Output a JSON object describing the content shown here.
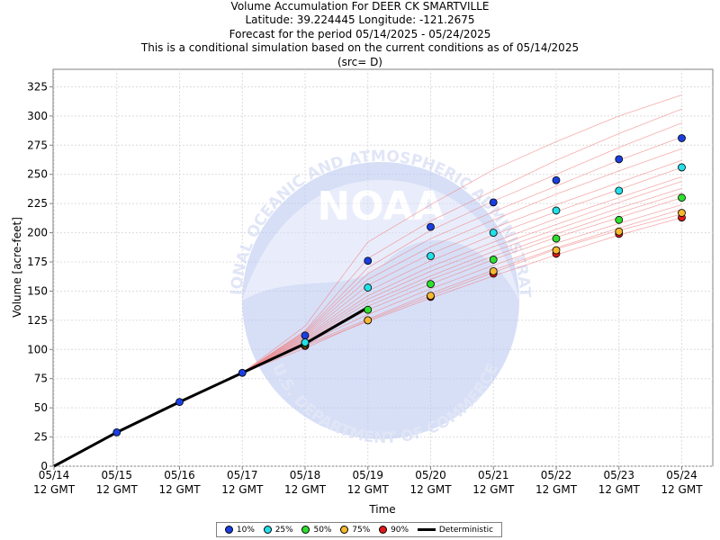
{
  "titles": {
    "line1": "Volume Accumulation For DEER CK SMARTVILLE",
    "line2": "Latitude: 39.224445 Longitude: -121.2675",
    "line3": "Forecast for the period 05/14/2025 - 05/24/2025",
    "line4": "This is a conditional simulation based on the current conditions as of 05/14/2025",
    "line5": "(src= D)"
  },
  "watermark": {
    "logo_text": "NOAA",
    "ring_text_top": "NATIONAL OCEANIC AND ATMOSPHERIC ADMINISTRATION",
    "ring_text_bottom": "U.S. DEPARTMENT OF COMMERCE"
  },
  "legend": [
    {
      "label": "10%",
      "color": "#1a3fe0",
      "kind": "dot"
    },
    {
      "label": "25%",
      "color": "#22e0e8",
      "kind": "dot"
    },
    {
      "label": "50%",
      "color": "#2ee02e",
      "kind": "dot"
    },
    {
      "label": "75%",
      "color": "#f5b830",
      "kind": "dot"
    },
    {
      "label": "90%",
      "color": "#e01a1a",
      "kind": "dot"
    },
    {
      "label": "Deterministic",
      "color": "#000000",
      "kind": "line"
    }
  ],
  "chart_data": {
    "type": "line",
    "xlabel": "Time",
    "ylabel": "Volume [acre-feet]",
    "ylim": [
      0,
      340
    ],
    "yticks": [
      0,
      25,
      50,
      75,
      100,
      125,
      150,
      175,
      200,
      225,
      250,
      275,
      300,
      325
    ],
    "xlim": [
      0,
      10.5
    ],
    "x_ticks": [
      {
        "x": 0,
        "date": "05/14",
        "time": "12 GMT"
      },
      {
        "x": 1,
        "date": "05/15",
        "time": "12 GMT"
      },
      {
        "x": 2,
        "date": "05/16",
        "time": "12 GMT"
      },
      {
        "x": 3,
        "date": "05/17",
        "time": "12 GMT"
      },
      {
        "x": 4,
        "date": "05/18",
        "time": "12 GMT"
      },
      {
        "x": 5,
        "date": "05/19",
        "time": "12 GMT"
      },
      {
        "x": 6,
        "date": "05/20",
        "time": "12 GMT"
      },
      {
        "x": 7,
        "date": "05/21",
        "time": "12 GMT"
      },
      {
        "x": 8,
        "date": "05/22",
        "time": "12 GMT"
      },
      {
        "x": 9,
        "date": "05/23",
        "time": "12 GMT"
      },
      {
        "x": 10,
        "date": "05/24",
        "time": "12 GMT"
      }
    ],
    "grid": true,
    "legend_position": "bottom",
    "deterministic": {
      "name": "Deterministic",
      "color": "#000000",
      "x": [
        0,
        1,
        2,
        3,
        4,
        5
      ],
      "y": [
        0,
        29,
        55,
        80,
        105,
        136
      ]
    },
    "initial_points": {
      "color": "#1a3fe0",
      "x": [
        1,
        2,
        3
      ],
      "y": [
        29,
        55,
        80
      ]
    },
    "percentile_series": [
      {
        "name": "10%",
        "color": "#1a3fe0",
        "x": [
          4,
          5,
          6,
          7,
          8,
          9,
          10
        ],
        "y": [
          112,
          176,
          205,
          226,
          245,
          263,
          281
        ]
      },
      {
        "name": "25%",
        "color": "#22e0e8",
        "x": [
          4,
          5,
          6,
          7,
          8,
          9,
          10
        ],
        "y": [
          106,
          153,
          180,
          200,
          219,
          236,
          256
        ]
      },
      {
        "name": "50%",
        "color": "#2ee02e",
        "x": [
          4,
          5,
          6,
          7,
          8,
          9,
          10
        ],
        "y": [
          105,
          134,
          156,
          177,
          195,
          211,
          230
        ]
      },
      {
        "name": "75%",
        "color": "#f5b830",
        "x": [
          4,
          5,
          6,
          7,
          8,
          9,
          10
        ],
        "y": [
          104,
          125,
          146,
          167,
          185,
          201,
          217
        ]
      },
      {
        "name": "90%",
        "color": "#e01a1a",
        "x": [
          4,
          5,
          6,
          7,
          8,
          9,
          10
        ],
        "y": [
          103,
          125,
          145,
          165,
          182,
          199,
          213
        ]
      }
    ],
    "ensemble_traces": {
      "color": "#f08080",
      "x": [
        3,
        4,
        5,
        6,
        7,
        8,
        9,
        10
      ],
      "traces": [
        [
          80,
          103,
          124,
          144,
          163,
          181,
          198,
          213
        ],
        [
          80,
          104,
          126,
          148,
          168,
          187,
          204,
          220
        ],
        [
          80,
          105,
          130,
          152,
          172,
          191,
          208,
          224
        ],
        [
          80,
          106,
          134,
          156,
          177,
          196,
          213,
          230
        ],
        [
          80,
          108,
          140,
          163,
          184,
          203,
          221,
          238
        ],
        [
          80,
          110,
          146,
          171,
          192,
          212,
          230,
          248
        ],
        [
          80,
          112,
          155,
          182,
          204,
          224,
          243,
          262
        ],
        [
          80,
          114,
          165,
          195,
          218,
          240,
          262,
          282
        ],
        [
          80,
          116,
          178,
          210,
          236,
          262,
          285,
          306
        ],
        [
          80,
          120,
          192,
          224,
          254,
          278,
          300,
          318
        ],
        [
          80,
          101,
          125,
          146,
          166,
          186,
          202,
          216
        ],
        [
          80,
          107,
          137,
          160,
          180,
          199,
          217,
          234
        ],
        [
          80,
          109,
          143,
          167,
          188,
          207,
          226,
          244
        ],
        [
          80,
          111,
          150,
          176,
          198,
          218,
          237,
          256
        ],
        [
          80,
          113,
          160,
          188,
          211,
          233,
          253,
          272
        ],
        [
          80,
          115,
          170,
          202,
          227,
          250,
          273,
          294
        ]
      ]
    }
  }
}
